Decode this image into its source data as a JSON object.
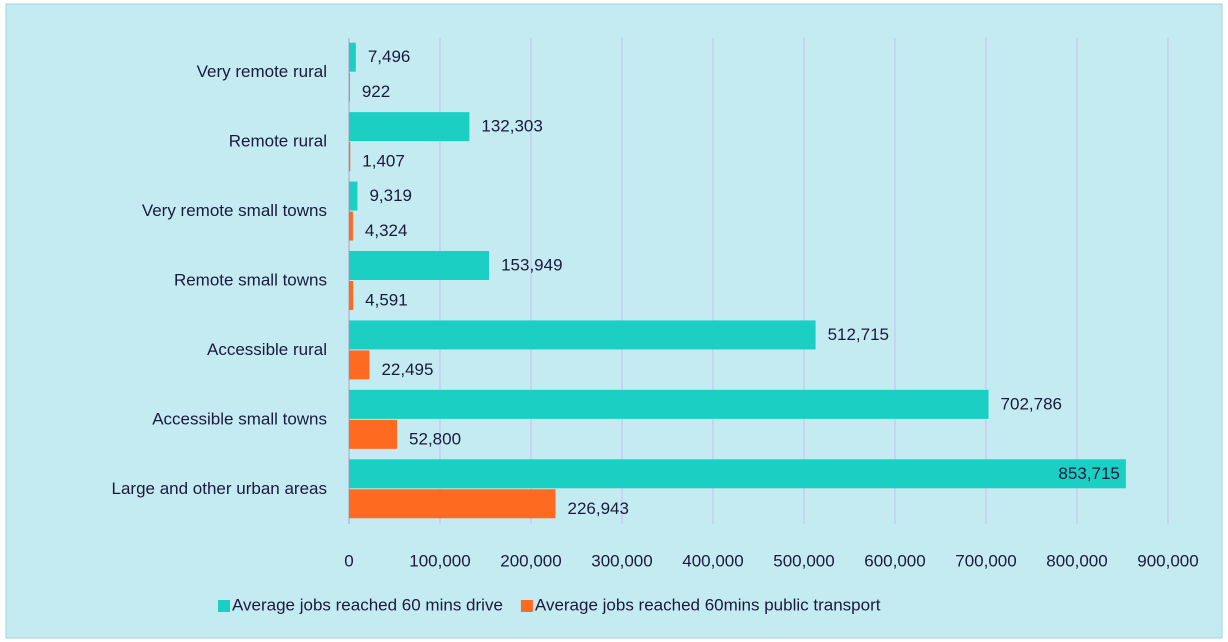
{
  "chart_data": {
    "type": "hbar",
    "categories": [
      "Very remote rural",
      "Remote rural",
      "Very remote small towns",
      "Remote small towns",
      "Accessible rural",
      "Accessible small towns",
      "Large and other urban areas"
    ],
    "series": [
      {
        "name": "Average jobs reached 60 mins drive",
        "color": "#1ccfc3",
        "values": [
          7496,
          132303,
          9319,
          153949,
          512715,
          702786,
          853715
        ],
        "value_labels": [
          "7,496",
          "132,303",
          "9,319",
          "153,949",
          "512,715",
          "702,786",
          "853,715"
        ]
      },
      {
        "name": "Average jobs reached 60mins public transport",
        "color": "#ff6a21",
        "values": [
          922,
          1407,
          4324,
          4591,
          22495,
          52800,
          226943
        ],
        "value_labels": [
          "922",
          "1,407",
          "4,324",
          "4,591",
          "22,495",
          "52,800",
          "226,943"
        ]
      }
    ],
    "xlim": [
      0,
      900000
    ],
    "xticks": [
      0,
      {
        "value": 100000,
        "label": "100,000"
      },
      {
        "value": 200000,
        "label": "200,000"
      },
      {
        "value": 300000,
        "label": "300,000"
      },
      {
        "value": 400000,
        "label": "400,000"
      },
      {
        "value": 500000,
        "label": "500,000"
      },
      {
        "value": 600000,
        "label": "600,000"
      },
      {
        "value": 700000,
        "label": "700,000"
      },
      {
        "value": 800000,
        "label": "800,000"
      },
      {
        "value": 900000,
        "label": "900,000"
      }
    ],
    "grid": true,
    "legend": "bottom"
  }
}
